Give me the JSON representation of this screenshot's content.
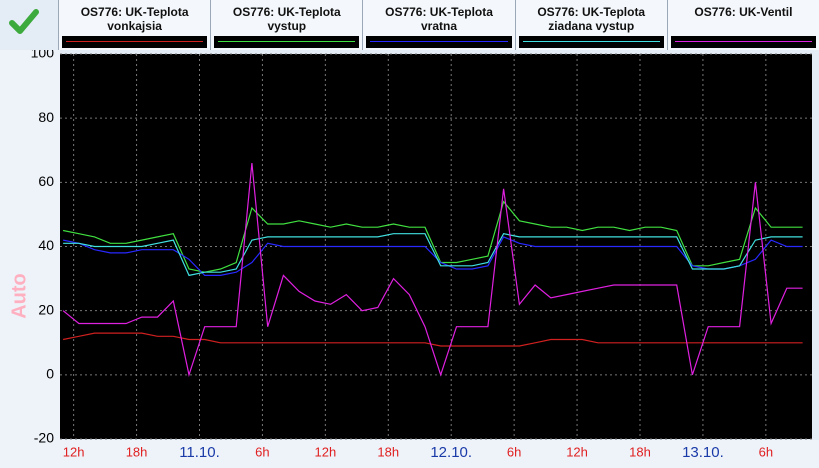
{
  "chart_data": {
    "type": "line",
    "y_label": "Auto",
    "x": [
      -13,
      -11.5,
      -10,
      -8.5,
      -7,
      -5.5,
      -4,
      -2.5,
      -1,
      0.5,
      2,
      3.5,
      5,
      6.5,
      8,
      9.5,
      11,
      12.5,
      14,
      15.5,
      17,
      18.5,
      20,
      21.5,
      23,
      24.5,
      26,
      27.5,
      29,
      30.5,
      32,
      33.5,
      35,
      36.5,
      38,
      39.5,
      41,
      42.5,
      44,
      45.5,
      47,
      48.5,
      50,
      51.5,
      53,
      54.5,
      56,
      57.5
    ],
    "xlim": [
      -13.3,
      58.4
    ],
    "xticks": [
      {
        "value": -12,
        "label": "12h"
      },
      {
        "value": -6,
        "label": "18h"
      },
      {
        "value": 0,
        "label": "11.10."
      },
      {
        "value": 6,
        "label": "6h"
      },
      {
        "value": 12,
        "label": "12h"
      },
      {
        "value": 18,
        "label": "18h"
      },
      {
        "value": 24,
        "label": "12.10."
      },
      {
        "value": 30,
        "label": "6h"
      },
      {
        "value": 36,
        "label": "12h"
      },
      {
        "value": 42,
        "label": "18h"
      },
      {
        "value": 48,
        "label": "13.10."
      },
      {
        "value": 54,
        "label": "6h"
      }
    ],
    "ylim": [
      -20,
      100
    ],
    "yticks": [
      -20,
      0,
      20,
      40,
      60,
      80,
      100
    ],
    "grid": true,
    "series": [
      {
        "name": "OS776: UK-Teplota\nvonkajsia",
        "color": "#d02020",
        "values": [
          11,
          12,
          13,
          13,
          13,
          13,
          12,
          12,
          11,
          11,
          10,
          10,
          10,
          10,
          10,
          10,
          10,
          10,
          10,
          10,
          10,
          10,
          10,
          10,
          9,
          9,
          9,
          9,
          9,
          9,
          10,
          11,
          11,
          11,
          10,
          10,
          10,
          10,
          10,
          10,
          10,
          10,
          10,
          10,
          10,
          10,
          10,
          10
        ]
      },
      {
        "name": "OS776: UK-Teplota\nvystup",
        "color": "#40e040",
        "values": [
          45,
          44,
          43,
          41,
          41,
          42,
          43,
          44,
          33,
          32,
          33,
          35,
          52,
          47,
          47,
          48,
          47,
          46,
          47,
          46,
          46,
          47,
          46,
          46,
          35,
          35,
          36,
          37,
          54,
          48,
          47,
          46,
          46,
          45,
          46,
          46,
          45,
          46,
          46,
          45,
          34,
          34,
          35,
          36,
          52,
          46,
          46,
          46
        ]
      },
      {
        "name": "OS776: UK-Teplota\nvratna",
        "color": "#2828ff",
        "values": [
          42,
          41,
          39,
          38,
          38,
          39,
          39,
          39,
          36,
          31,
          31,
          32,
          35,
          41,
          40,
          40,
          40,
          40,
          40,
          40,
          40,
          40,
          40,
          40,
          35,
          33,
          33,
          34,
          43,
          41,
          40,
          40,
          40,
          40,
          40,
          40,
          40,
          40,
          40,
          40,
          34,
          33,
          33,
          34,
          36,
          42,
          40,
          40
        ]
      },
      {
        "name": "OS776: UK-Teplota\nziadana vystup",
        "color": "#40e0e0",
        "values": [
          41,
          41,
          40,
          40,
          40,
          40,
          41,
          42,
          31,
          32,
          32,
          33,
          42,
          43,
          43,
          43,
          43,
          43,
          43,
          43,
          43,
          44,
          44,
          44,
          34,
          34,
          34,
          35,
          44,
          43,
          43,
          43,
          43,
          43,
          43,
          43,
          43,
          43,
          43,
          43,
          33,
          33,
          33,
          34,
          42,
          43,
          43,
          43
        ]
      },
      {
        "name": "OS776: UK-Ventil",
        "color": "#e020e0",
        "values": [
          20,
          16,
          16,
          16,
          16,
          18,
          18,
          23,
          0,
          15,
          15,
          15,
          66,
          15,
          31,
          26,
          23,
          22,
          25,
          20,
          21,
          30,
          25,
          15,
          0,
          15,
          15,
          15,
          58,
          22,
          28,
          24,
          25,
          26,
          27,
          28,
          28,
          28,
          28,
          28,
          0,
          15,
          15,
          15,
          60,
          16,
          27,
          27
        ]
      }
    ]
  }
}
